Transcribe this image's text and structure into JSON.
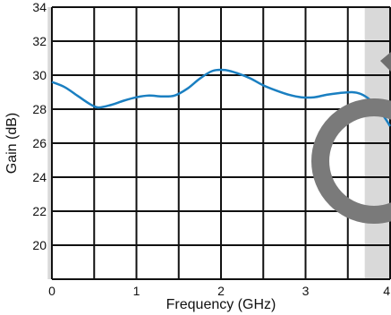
{
  "chart_data": {
    "type": "line",
    "title": "",
    "xlabel": "Frequency (GHz)",
    "ylabel": "Gain (dB)",
    "xlim": [
      0,
      4
    ],
    "ylim": [
      18,
      34
    ],
    "x_ticks": [
      0,
      1,
      2,
      3,
      4
    ],
    "y_ticks": [
      20,
      22,
      24,
      26,
      28,
      30,
      32,
      34
    ],
    "grid": true,
    "legend": "none",
    "series": [
      {
        "color": "#1a7fc1",
        "x": [
          0,
          0.15,
          0.3,
          0.45,
          0.55,
          0.7,
          0.85,
          1.0,
          1.15,
          1.3,
          1.45,
          1.6,
          1.75,
          1.9,
          2.05,
          2.2,
          2.35,
          2.5,
          2.65,
          2.8,
          2.95,
          3.1,
          3.25,
          3.4,
          3.55,
          3.65,
          3.75,
          3.85,
          3.95,
          4.0
        ],
        "y": [
          29.6,
          29.3,
          28.8,
          28.3,
          28.1,
          28.25,
          28.5,
          28.7,
          28.8,
          28.75,
          28.8,
          29.2,
          29.8,
          30.25,
          30.3,
          30.1,
          29.8,
          29.4,
          29.1,
          28.85,
          28.7,
          28.7,
          28.85,
          28.95,
          29.0,
          28.9,
          28.6,
          28.1,
          27.4,
          27.0
        ]
      }
    ],
    "shaded_regions": [
      {
        "x": [
          -0.05,
          0.0
        ],
        "color": "#d9d9d9"
      },
      {
        "x": [
          3.7,
          4.0
        ],
        "color": "#d9d9d9"
      }
    ]
  }
}
